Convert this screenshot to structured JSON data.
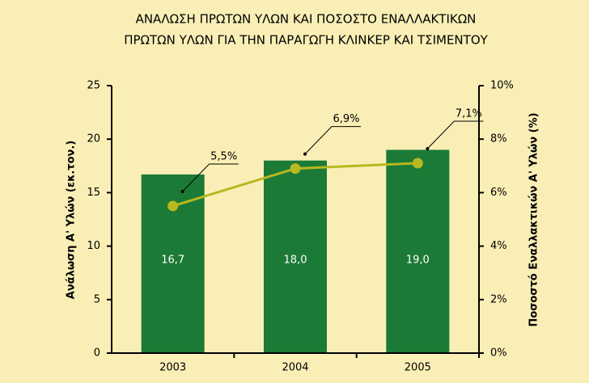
{
  "chart_data": {
    "type": "bar_line",
    "title": [
      "ΑΝΑΛΩΣΗ ΠΡΩΤΩΝ ΥΛΩΝ ΚΑΙ ΠΟΣΟΣΤΟ ΕΝΑΛΛΑΚΤΙΚΩΝ",
      "ΠΡΩΤΩΝ ΥΛΩΝ ΓΙΑ ΤΗΝ ΠΑΡΑΓΩΓΗ ΚΛΙΝΚΕΡ ΚΑΙ ΤΣΙΜΕΝΤΟΥ"
    ],
    "y_label": "Ανάλωση Α' Υλών (εκ.τον.)",
    "y2_label": "Ποσοστό Εναλλακτικών Α' Υλών (%)",
    "categories": [
      "2003",
      "2004",
      "2005"
    ],
    "series": [
      {
        "type": "bar",
        "color": "#1b7a36",
        "values": [
          16.7,
          18.0,
          19.0
        ],
        "value_labels": [
          "16,7",
          "18,0",
          "19,0"
        ]
      },
      {
        "type": "line",
        "axis": "y2",
        "color": "#b8b820",
        "values": [
          5.5,
          6.9,
          7.1
        ],
        "value_labels": [
          "5,5%",
          "6,9%",
          "7,1%"
        ]
      }
    ],
    "ylim": [
      0,
      25
    ],
    "yticks": [
      0,
      5,
      10,
      15,
      20,
      25
    ],
    "y2lim": [
      0,
      10
    ],
    "y2ticks": [
      {
        "value": 0,
        "label": "0%"
      },
      {
        "value": 2,
        "label": "2%"
      },
      {
        "value": 4,
        "label": "4%"
      },
      {
        "value": 6,
        "label": "6%"
      },
      {
        "value": 8,
        "label": "8%"
      },
      {
        "value": 10,
        "label": "10%"
      }
    ],
    "background": "#f9efb6"
  }
}
